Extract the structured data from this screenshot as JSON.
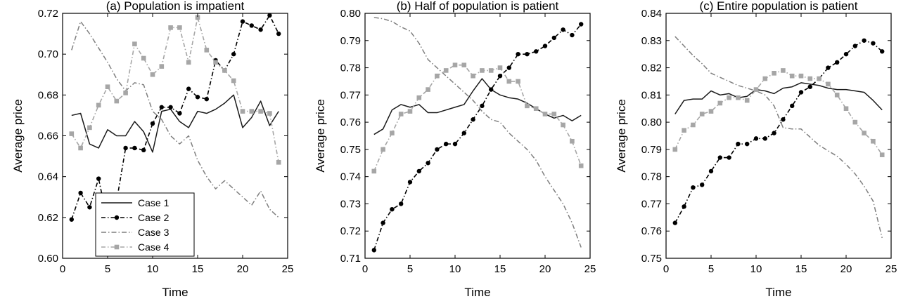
{
  "chart_data": [
    {
      "type": "line",
      "title": "(a) Population is impatient",
      "xlabel": "Time",
      "ylabel": "Average price",
      "xlim": [
        0,
        25
      ],
      "ylim": [
        0.6,
        0.72
      ],
      "xticks": [
        "0",
        "5",
        "10",
        "15",
        "20",
        "25"
      ],
      "yticks": [
        "0.60",
        "0.62",
        "0.64",
        "0.66",
        "0.68",
        "0.70",
        "0.72"
      ],
      "grid": false,
      "legend": "bottom-left",
      "x": [
        1,
        2,
        3,
        4,
        5,
        6,
        7,
        8,
        9,
        10,
        11,
        12,
        13,
        14,
        15,
        16,
        17,
        18,
        19,
        20,
        21,
        22,
        23,
        24
      ],
      "series": [
        {
          "name": "Case 1",
          "values": [
            0.67,
            0.671,
            0.656,
            0.654,
            0.663,
            0.66,
            0.66,
            0.667,
            0.662,
            0.652,
            0.672,
            0.673,
            0.667,
            0.664,
            0.672,
            0.671,
            0.673,
            0.676,
            0.68,
            0.664,
            0.669,
            0.677,
            0.665,
            0.672
          ]
        },
        {
          "name": "Case 2",
          "values": [
            0.619,
            0.632,
            0.625,
            0.639,
            0.618,
            0.628,
            0.654,
            0.654,
            0.653,
            0.666,
            0.674,
            0.674,
            0.671,
            0.683,
            0.679,
            0.678,
            0.697,
            0.692,
            0.7,
            0.716,
            0.714,
            0.712,
            0.719,
            0.71
          ]
        },
        {
          "name": "Case 3",
          "values": [
            0.702,
            0.716,
            0.71,
            0.703,
            0.696,
            0.688,
            0.682,
            0.686,
            0.685,
            0.672,
            0.668,
            0.66,
            0.656,
            0.66,
            0.648,
            0.64,
            0.634,
            0.638,
            0.634,
            0.63,
            0.626,
            0.633,
            0.624,
            0.62
          ]
        },
        {
          "name": "Case 4",
          "values": [
            0.661,
            0.654,
            0.664,
            0.675,
            0.684,
            0.677,
            0.681,
            0.705,
            0.698,
            0.69,
            0.694,
            0.713,
            0.713,
            0.696,
            0.718,
            0.702,
            0.696,
            0.692,
            0.687,
            0.672,
            0.672,
            0.672,
            0.671,
            0.647
          ]
        }
      ]
    },
    {
      "type": "line",
      "title": "(b) Half of population is patient",
      "xlabel": "Time",
      "ylabel": "Average price",
      "xlim": [
        0,
        25
      ],
      "ylim": [
        0.71,
        0.8
      ],
      "xticks": [
        "0",
        "5",
        "10",
        "15",
        "20",
        "25"
      ],
      "yticks": [
        "0.71",
        "0.72",
        "0.73",
        "0.74",
        "0.75",
        "0.76",
        "0.77",
        "0.78",
        "0.79",
        "0.80"
      ],
      "grid": false,
      "x": [
        1,
        2,
        3,
        4,
        5,
        6,
        7,
        8,
        9,
        10,
        11,
        12,
        13,
        14,
        15,
        16,
        17,
        18,
        19,
        20,
        21,
        22,
        23,
        24
      ],
      "series": [
        {
          "name": "Case 1",
          "values": [
            0.7555,
            0.7575,
            0.7645,
            0.7665,
            0.7655,
            0.7665,
            0.7635,
            0.7635,
            0.7645,
            0.7655,
            0.7665,
            0.7715,
            0.776,
            0.772,
            0.77,
            0.769,
            0.7685,
            0.767,
            0.765,
            0.763,
            0.7615,
            0.7625,
            0.7605,
            0.7625
          ]
        },
        {
          "name": "Case 2",
          "values": [
            0.713,
            0.723,
            0.728,
            0.73,
            0.738,
            0.742,
            0.745,
            0.75,
            0.752,
            0.752,
            0.756,
            0.761,
            0.766,
            0.772,
            0.777,
            0.78,
            0.785,
            0.785,
            0.786,
            0.788,
            0.791,
            0.794,
            0.792,
            0.796
          ]
        },
        {
          "name": "Case 3",
          "values": [
            0.7985,
            0.798,
            0.797,
            0.795,
            0.7935,
            0.789,
            0.783,
            0.78,
            0.777,
            0.774,
            0.771,
            0.768,
            0.764,
            0.761,
            0.76,
            0.756,
            0.753,
            0.75,
            0.746,
            0.74,
            0.735,
            0.73,
            0.723,
            0.714
          ]
        },
        {
          "name": "Case 4",
          "values": [
            0.742,
            0.75,
            0.756,
            0.763,
            0.764,
            0.769,
            0.772,
            0.777,
            0.779,
            0.781,
            0.781,
            0.777,
            0.779,
            0.779,
            0.78,
            0.775,
            0.775,
            0.766,
            0.765,
            0.763,
            0.763,
            0.759,
            0.753,
            0.744
          ]
        }
      ]
    },
    {
      "type": "line",
      "title": "(c) Entire population is patient",
      "xlabel": "Time",
      "ylabel": "Average price",
      "xlim": [
        0,
        25
      ],
      "ylim": [
        0.75,
        0.84
      ],
      "xticks": [
        "0",
        "5",
        "10",
        "15",
        "20",
        "25"
      ],
      "yticks": [
        "0.75",
        "0.76",
        "0.77",
        "0.78",
        "0.79",
        "0.80",
        "0.81",
        "0.82",
        "0.83",
        "0.84"
      ],
      "grid": false,
      "x": [
        1,
        2,
        3,
        4,
        5,
        6,
        7,
        8,
        9,
        10,
        11,
        12,
        13,
        14,
        15,
        16,
        17,
        18,
        19,
        20,
        21,
        22,
        23,
        24
      ],
      "series": [
        {
          "name": "Case 1",
          "values": [
            0.803,
            0.808,
            0.8085,
            0.8085,
            0.8115,
            0.81,
            0.8105,
            0.809,
            0.8095,
            0.812,
            0.8115,
            0.8105,
            0.8125,
            0.813,
            0.8145,
            0.814,
            0.8135,
            0.8125,
            0.812,
            0.812,
            0.8115,
            0.811,
            0.808,
            0.8045
          ]
        },
        {
          "name": "Case 2",
          "values": [
            0.763,
            0.769,
            0.776,
            0.777,
            0.782,
            0.787,
            0.787,
            0.792,
            0.792,
            0.794,
            0.794,
            0.796,
            0.801,
            0.806,
            0.811,
            0.813,
            0.816,
            0.82,
            0.822,
            0.825,
            0.828,
            0.83,
            0.829,
            0.826
          ]
        },
        {
          "name": "Case 3",
          "values": [
            0.8315,
            0.828,
            0.8245,
            0.8215,
            0.818,
            0.8165,
            0.815,
            0.8135,
            0.8125,
            0.8115,
            0.81,
            0.806,
            0.798,
            0.7975,
            0.7975,
            0.7945,
            0.7915,
            0.7895,
            0.7875,
            0.7845,
            0.781,
            0.7765,
            0.771,
            0.7575
          ]
        },
        {
          "name": "Case 4",
          "values": [
            0.79,
            0.797,
            0.799,
            0.803,
            0.804,
            0.807,
            0.809,
            0.809,
            0.808,
            0.812,
            0.816,
            0.818,
            0.819,
            0.817,
            0.817,
            0.816,
            0.816,
            0.814,
            0.81,
            0.805,
            0.8,
            0.796,
            0.793,
            0.788
          ]
        }
      ]
    }
  ],
  "styles": {
    "case1_color": "#1a1a1a",
    "case2_color": "#000000",
    "case3_color": "#7f7f7f",
    "case4_color": "#a6a6a6"
  }
}
